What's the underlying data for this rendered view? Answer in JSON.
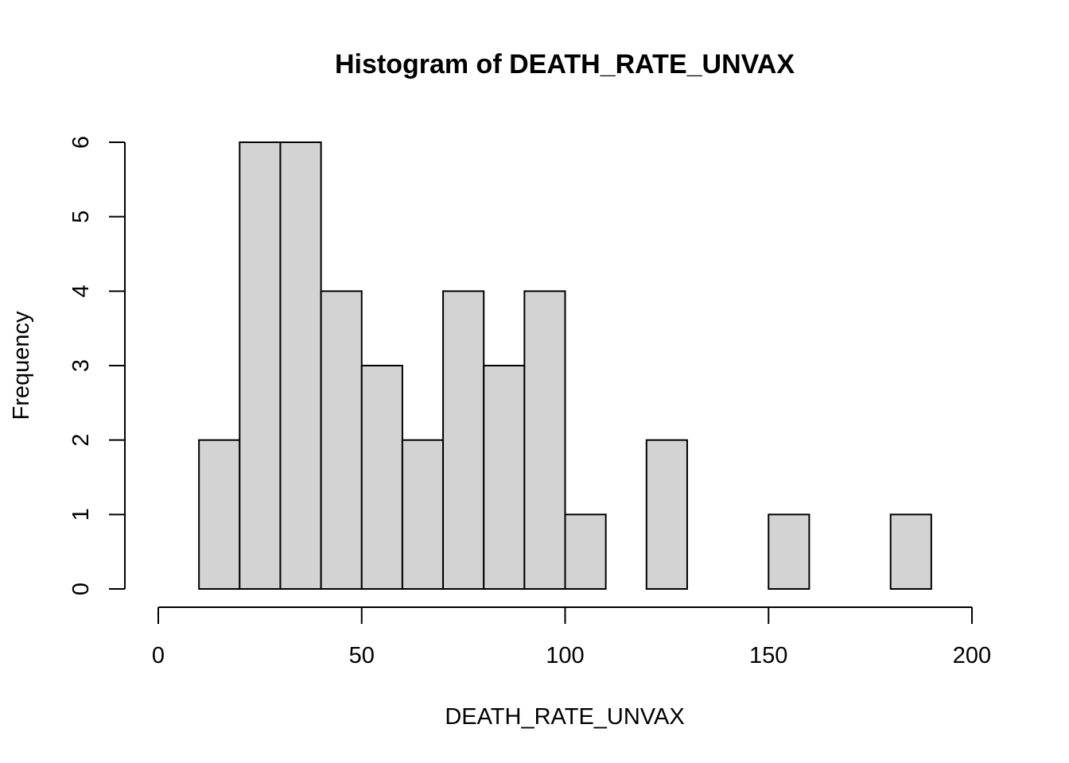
{
  "chart_data": {
    "type": "bar",
    "histogram": true,
    "title": "Histogram of DEATH_RATE_UNVAX",
    "xlabel": "DEATH_RATE_UNVAX",
    "ylabel": "Frequency",
    "bar_color": "#d3d3d3",
    "edge_color": "#000000",
    "grid": false,
    "xlim": [
      0,
      200
    ],
    "ylim": [
      0,
      6
    ],
    "x_ticks": [
      0,
      50,
      100,
      150,
      200
    ],
    "y_ticks": [
      0,
      1,
      2,
      3,
      4,
      5,
      6
    ],
    "bins": [
      {
        "start": 0,
        "end": 10,
        "count": 0
      },
      {
        "start": 10,
        "end": 20,
        "count": 2
      },
      {
        "start": 20,
        "end": 30,
        "count": 6
      },
      {
        "start": 30,
        "end": 40,
        "count": 6
      },
      {
        "start": 40,
        "end": 50,
        "count": 4
      },
      {
        "start": 50,
        "end": 60,
        "count": 3
      },
      {
        "start": 60,
        "end": 70,
        "count": 2
      },
      {
        "start": 70,
        "end": 80,
        "count": 4
      },
      {
        "start": 80,
        "end": 90,
        "count": 3
      },
      {
        "start": 90,
        "end": 100,
        "count": 4
      },
      {
        "start": 100,
        "end": 110,
        "count": 1
      },
      {
        "start": 110,
        "end": 120,
        "count": 0
      },
      {
        "start": 120,
        "end": 130,
        "count": 2
      },
      {
        "start": 130,
        "end": 140,
        "count": 0
      },
      {
        "start": 140,
        "end": 150,
        "count": 0
      },
      {
        "start": 150,
        "end": 160,
        "count": 1
      },
      {
        "start": 160,
        "end": 170,
        "count": 0
      },
      {
        "start": 170,
        "end": 180,
        "count": 0
      },
      {
        "start": 180,
        "end": 190,
        "count": 1
      },
      {
        "start": 190,
        "end": 200,
        "count": 0
      }
    ]
  }
}
